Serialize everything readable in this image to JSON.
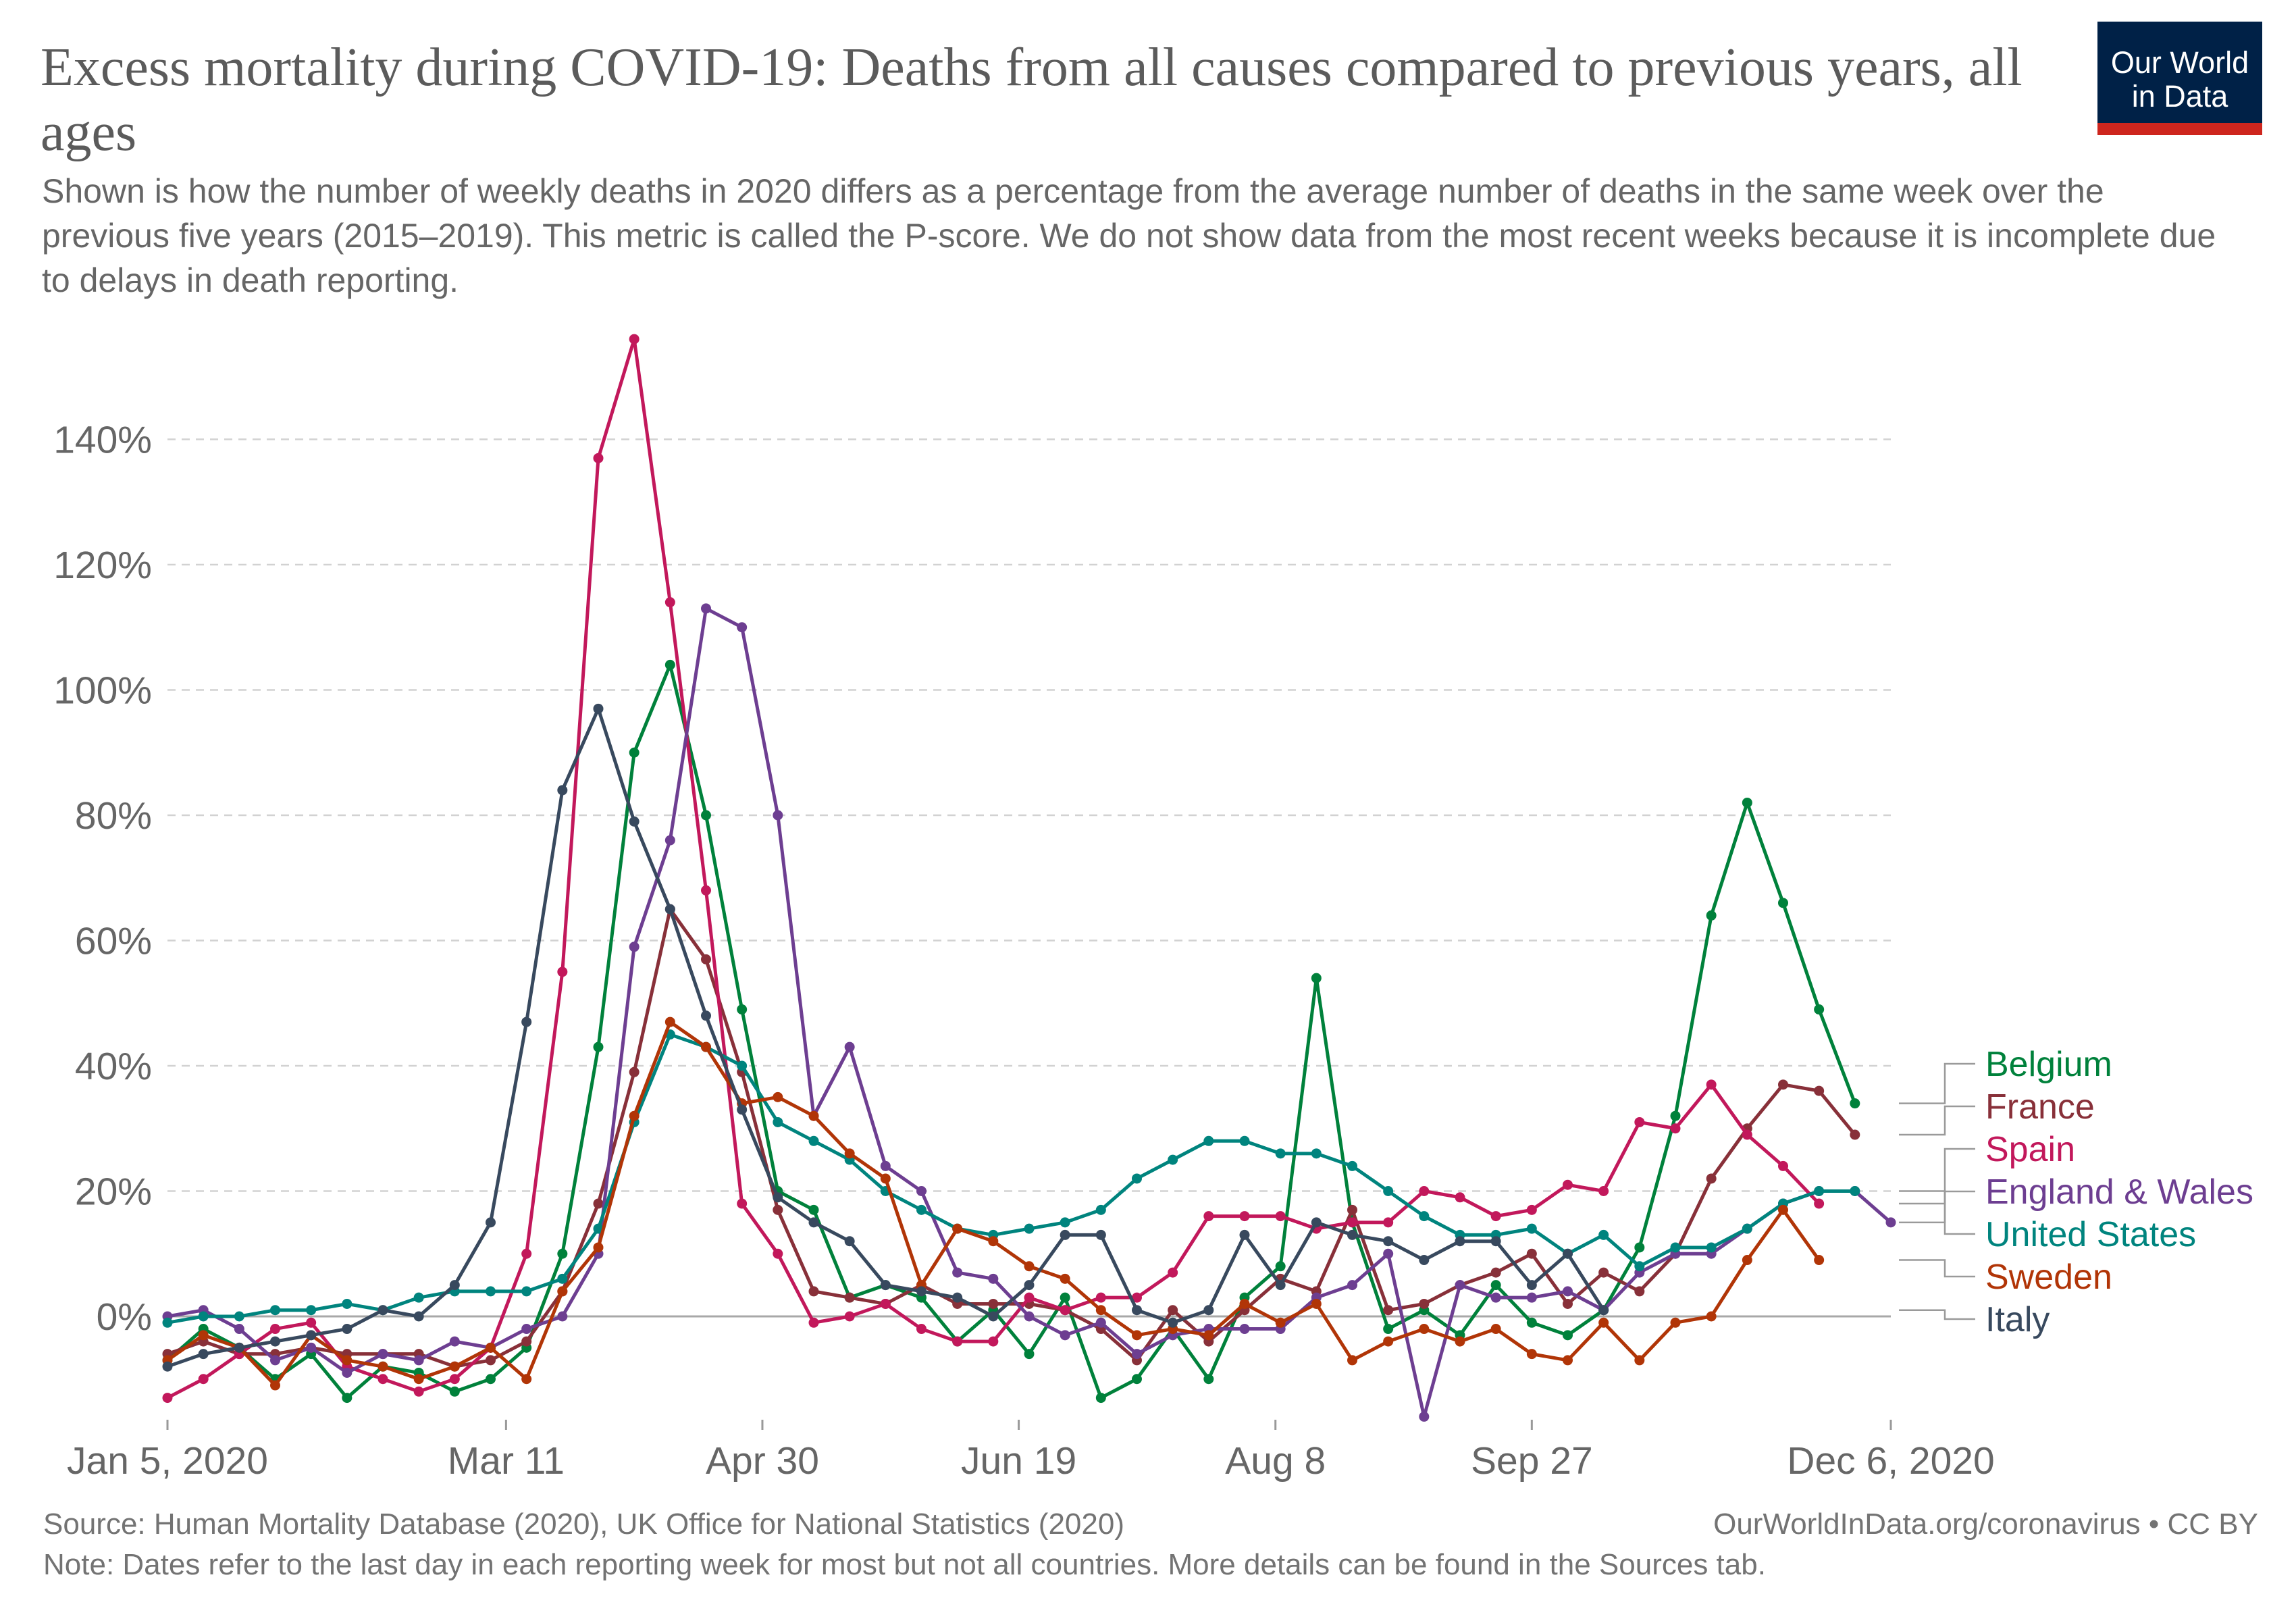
{
  "title": "Excess mortality during COVID-19: Deaths from all causes compared to previous years, all ages",
  "subtitle": "Shown is how the number of weekly deaths in 2020 differs as a percentage from the average number of deaths in the same week over the previous five years (2015–2019). This metric is called the P-score. We do not show data from the most recent weeks because it is incomplete due to delays in death reporting.",
  "logo": {
    "line1": "Our World",
    "line2": "in Data",
    "bg": "#002147",
    "accent": "#ce261e"
  },
  "footer": {
    "source": "Source: Human Mortality Database (2020), UK Office for National Statistics (2020)",
    "url": "OurWorldInData.org/coronavirus • CC BY",
    "note": "Note: Dates refer to the last day in each reporting week for most but not all countries. More details can be found in the Sources tab."
  },
  "chart_data": {
    "type": "line",
    "x_start": "2020-01-05",
    "week_step_days": 7,
    "x_ticks": [
      {
        "label": "Jan 5, 2020",
        "week": 0
      },
      {
        "label": "Mar 11",
        "week": 9.43
      },
      {
        "label": "Apr 30",
        "week": 16.57
      },
      {
        "label": "Jun 19",
        "week": 23.71
      },
      {
        "label": "Aug 8",
        "week": 30.86
      },
      {
        "label": "Sep 27",
        "week": 38
      },
      {
        "label": "Dec 6, 2020",
        "week": 48
      }
    ],
    "y_ticks": [
      0,
      20,
      40,
      60,
      80,
      100,
      120,
      140
    ],
    "y_unit": "%",
    "ylim": [
      -17,
      156
    ],
    "grid": "horizontal-dashed",
    "legend": "right",
    "series": [
      {
        "name": "Belgium",
        "color": "#00813b",
        "values": [
          -7,
          -2,
          -5,
          -10,
          -6,
          -13,
          -8,
          -9,
          -12,
          -10,
          -5,
          10,
          43,
          90,
          104,
          80,
          49,
          20,
          17,
          3,
          5,
          3,
          -4,
          1,
          -6,
          3,
          -13,
          -10,
          -2,
          -10,
          3,
          8,
          54,
          15,
          -2,
          1,
          -3,
          5,
          -1,
          -3,
          1,
          11,
          32,
          64,
          82,
          66,
          49,
          34
        ]
      },
      {
        "name": "France",
        "color": "#883039",
        "values": [
          -6,
          -4,
          -6,
          -6,
          -5,
          -6,
          -6,
          -6,
          -8,
          -7,
          -4,
          4,
          18,
          39,
          65,
          57,
          39,
          17,
          4,
          3,
          2,
          5,
          2,
          2,
          2,
          1,
          -2,
          -7,
          1,
          -4,
          1,
          6,
          4,
          17,
          1,
          2,
          5,
          7,
          10,
          2,
          7,
          4,
          10,
          22,
          30,
          37,
          36,
          29
        ]
      },
      {
        "name": "Spain",
        "color": "#c2185b",
        "values": [
          -13,
          -10,
          -6,
          -2,
          -1,
          -8,
          -10,
          -12,
          -10,
          -5,
          10,
          55,
          137,
          156,
          114,
          68,
          18,
          10,
          -1,
          0,
          2,
          -2,
          -4,
          -4,
          3,
          1,
          3,
          3,
          7,
          16,
          16,
          16,
          14,
          15,
          15,
          20,
          19,
          16,
          17,
          21,
          20,
          31,
          30,
          37,
          29,
          24,
          18
        ]
      },
      {
        "name": "England & Wales",
        "color": "#6d3e91",
        "values": [
          0,
          1,
          -2,
          -7,
          -5,
          -9,
          -6,
          -7,
          -4,
          -5,
          -2,
          0,
          10,
          59,
          76,
          113,
          110,
          80,
          32,
          43,
          24,
          20,
          7,
          6,
          0,
          -3,
          -1,
          -6,
          -3,
          -2,
          -2,
          -2,
          3,
          5,
          10,
          -16,
          5,
          3,
          3,
          4,
          1,
          7,
          10,
          10,
          14,
          18,
          20,
          20,
          15
        ]
      },
      {
        "name": "United States",
        "color": "#00847e",
        "values": [
          -1,
          0,
          0,
          1,
          1,
          2,
          1,
          3,
          4,
          4,
          4,
          6,
          14,
          31,
          45,
          43,
          40,
          31,
          28,
          25,
          20,
          17,
          14,
          13,
          14,
          15,
          17,
          22,
          25,
          28,
          28,
          26,
          26,
          24,
          20,
          16,
          13,
          13,
          14,
          10,
          13,
          8,
          11,
          11,
          14,
          18,
          20,
          20
        ]
      },
      {
        "name": "Sweden",
        "color": "#b13507",
        "values": [
          -7,
          -3,
          -5,
          -11,
          -3,
          -7,
          -8,
          -10,
          -8,
          -5,
          -10,
          4,
          11,
          32,
          47,
          43,
          34,
          35,
          32,
          26,
          22,
          5,
          14,
          12,
          8,
          6,
          1,
          -3,
          -2,
          -3,
          2,
          -1,
          2,
          -7,
          -4,
          -2,
          -4,
          -2,
          -6,
          -7,
          -1,
          -7,
          -1,
          0,
          9,
          17,
          9
        ]
      },
      {
        "name": "Italy",
        "color": "#38495e",
        "values": [
          -8,
          -6,
          -5,
          -4,
          -3,
          -2,
          1,
          0,
          5,
          15,
          47,
          84,
          97,
          79,
          65,
          48,
          33,
          19,
          15,
          12,
          5,
          4,
          3,
          0,
          5,
          13,
          13,
          1,
          -1,
          1,
          13,
          5,
          15,
          13,
          12,
          9,
          12,
          12,
          5,
          10,
          1
        ]
      }
    ]
  }
}
